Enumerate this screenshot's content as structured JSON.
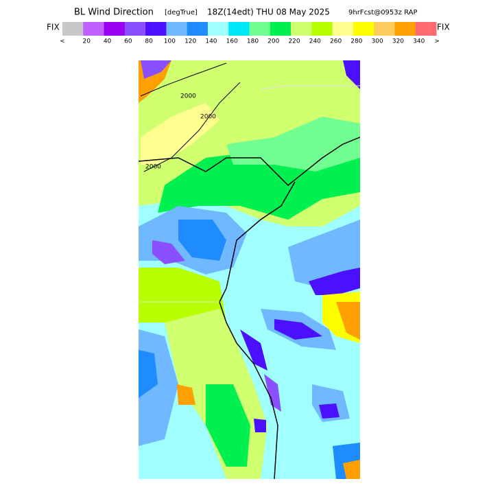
{
  "header": {
    "title": "BL Wind Direction",
    "units": "[degTrue]",
    "valid_time": "18Z(14edt) THU 08 May 2025",
    "forecast": "9hrFcst@0953z RAP"
  },
  "colorbar": {
    "fix_left": "FIX",
    "fix_right": "FIX",
    "colors": [
      "#c8c8c8",
      "#c060ff",
      "#9a00f0",
      "#8a50ff",
      "#4a10ff",
      "#70b8ff",
      "#1e8cff",
      "#a0ffff",
      "#00e8f8",
      "#70ff90",
      "#00f050",
      "#d0ff70",
      "#b8ff00",
      "#ffff90",
      "#ffff00",
      "#ffcc60",
      "#ffa000",
      "#ff6a70"
    ],
    "labels": [
      "<",
      "20",
      "40",
      "60",
      "80",
      "100",
      "120",
      "140",
      "160",
      "180",
      "200",
      "220",
      "240",
      "260",
      "280",
      "300",
      "320",
      "340",
      ">"
    ]
  },
  "map": {
    "contour_labels": [
      "2000",
      "2000",
      "2000"
    ]
  }
}
